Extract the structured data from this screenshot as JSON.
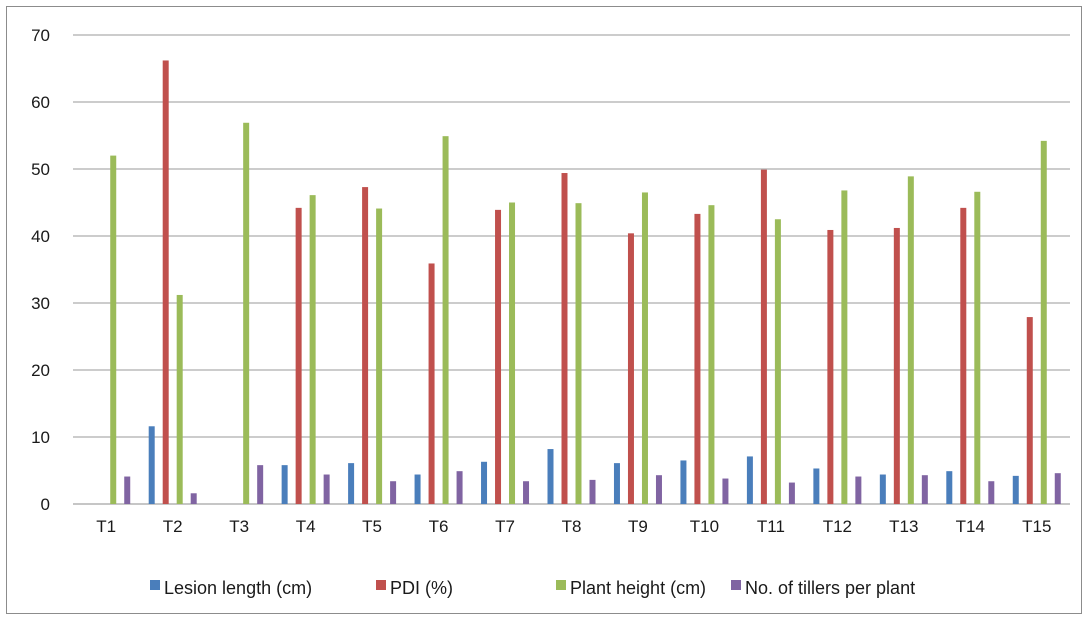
{
  "chart_data": {
    "type": "bar",
    "categories": [
      "T1",
      "T2",
      "T3",
      "T4",
      "T5",
      "T6",
      "T7",
      "T8",
      "T9",
      "T10",
      "T11",
      "T12",
      "T13",
      "T14",
      "T15"
    ],
    "series": [
      {
        "name": "Lesion length (cm)",
        "color": "#4a7ebb",
        "values": [
          0,
          11.6,
          0,
          5.8,
          6.1,
          4.4,
          6.3,
          8.2,
          6.1,
          6.5,
          7.1,
          5.3,
          4.4,
          4.9,
          4.2
        ]
      },
      {
        "name": "PDI (%)",
        "color": "#c0504d",
        "values": [
          0,
          66.2,
          0,
          44.2,
          47.3,
          35.9,
          43.9,
          49.4,
          40.4,
          43.3,
          49.9,
          40.9,
          41.2,
          44.2,
          27.9
        ]
      },
      {
        "name": "Plant height (cm)",
        "color": "#9bbb59",
        "values": [
          52.0,
          31.2,
          56.9,
          46.1,
          44.1,
          54.9,
          45.0,
          44.9,
          46.5,
          44.6,
          42.5,
          46.8,
          48.9,
          46.6,
          54.2
        ]
      },
      {
        "name": "No. of tillers per plant",
        "color": "#8064a2",
        "values": [
          4.1,
          1.6,
          5.8,
          4.4,
          3.4,
          4.9,
          3.4,
          3.6,
          4.3,
          3.8,
          3.2,
          4.1,
          4.3,
          3.4,
          4.6
        ]
      }
    ],
    "yticks": [
      "0",
      "10",
      "20",
      "30",
      "40",
      "50",
      "60",
      "70"
    ],
    "ylim": [
      0,
      70
    ],
    "grid": true,
    "legend_position": "bottom"
  }
}
